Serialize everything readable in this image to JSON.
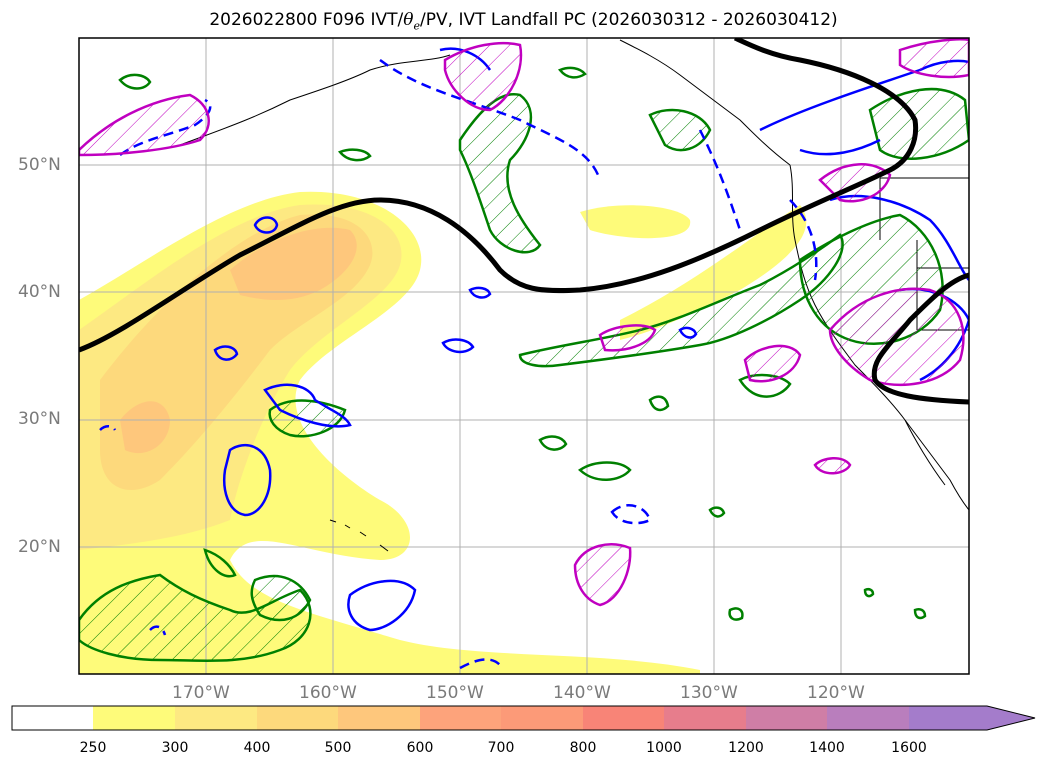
{
  "title": {
    "prefix": "2026022800 F096 IVT/",
    "theta": "θ",
    "theta_sub": "e",
    "suffix": "/PV, IVT Landfall PC (2026030312 - 2026030412)"
  },
  "map": {
    "lat_labels": [
      "50°N",
      "40°N",
      "30°N",
      "20°N"
    ],
    "lon_labels": [
      "170°W",
      "160°W",
      "150°W",
      "140°W",
      "130°W",
      "120°W"
    ],
    "lat_ticks": [
      50,
      40,
      30,
      20
    ],
    "lon_ticks": [
      -170,
      -160,
      -150,
      -140,
      -130,
      -120
    ],
    "extent": {
      "lon_min": -180,
      "lon_max": -110,
      "lat_min": 10,
      "lat_max": 60
    },
    "grid": true
  },
  "colorbar": {
    "levels": [
      "250",
      "300",
      "400",
      "500",
      "600",
      "700",
      "800",
      "1000",
      "1200",
      "1400",
      "1600"
    ],
    "colors": [
      "#ffffff",
      "#fefb7a",
      "#fde982",
      "#fdd97c",
      "#fec77c",
      "#fda37b",
      "#fc9a78",
      "#f88477",
      "#e77d8c",
      "#cf7ea6",
      "#b97ebd",
      "#a47ccb"
    ],
    "extend": "max"
  },
  "legend_colors": {
    "ivt_contour": "#000000",
    "theta_e_contour": "#0000ff",
    "pv_contour": "#008000",
    "landfall_pc": "#c000c0"
  }
}
